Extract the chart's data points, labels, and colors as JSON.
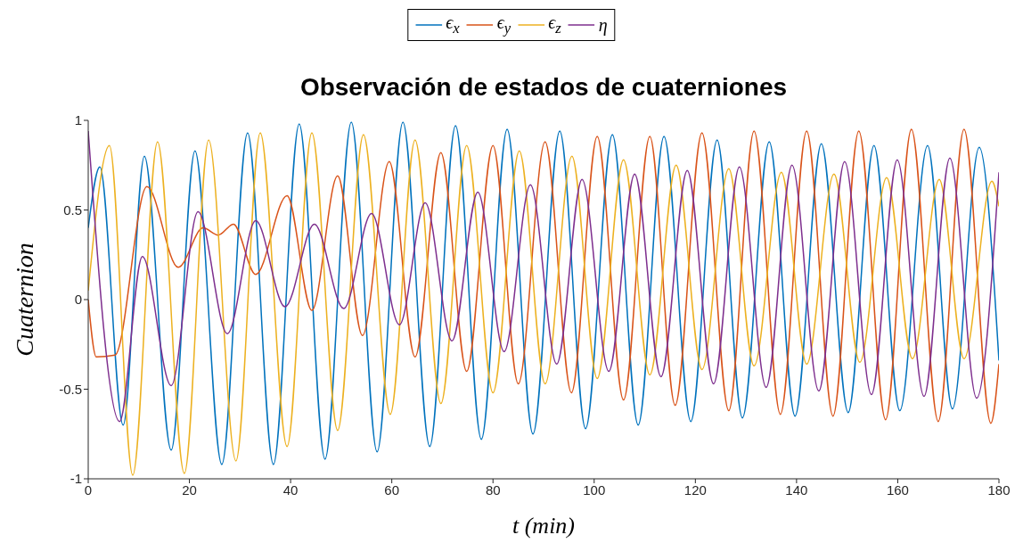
{
  "chart_data": {
    "type": "line",
    "title": "Observación de estados de cuaterniones",
    "xlabel": "t (min)",
    "ylabel": "Cuaternion",
    "legend": "top",
    "xlim": [
      0,
      180
    ],
    "ylim": [
      -1,
      1
    ],
    "xticks": [
      0,
      20,
      40,
      60,
      80,
      100,
      120,
      140,
      160,
      180
    ],
    "yticks": [
      -1,
      -0.5,
      0,
      0.5,
      1
    ],
    "series": [
      {
        "name": "ϵ$_{x}$",
        "color": "#0072bd",
        "x": [
          0,
          2.3,
          6.9,
          11.1,
          16.4,
          21.1,
          26.4,
          31.5,
          36.6,
          41.7,
          46.8,
          52,
          57.1,
          62.2,
          67.5,
          72.6,
          77.7,
          82.8,
          87.9,
          93.2,
          98.3,
          103.6,
          108.7,
          113.8,
          119.1,
          124.3,
          129.3,
          134.6,
          139.7,
          144.9,
          150.2,
          155.3,
          160.4,
          165.9,
          170.8,
          176.1,
          180
        ],
        "values": [
          0.4,
          0.74,
          -0.7,
          0.8,
          -0.84,
          0.83,
          -0.92,
          0.93,
          -0.92,
          0.98,
          -0.89,
          0.99,
          -0.85,
          0.99,
          -0.82,
          0.97,
          -0.78,
          0.95,
          -0.75,
          0.94,
          -0.72,
          0.92,
          -0.7,
          0.91,
          -0.68,
          0.89,
          -0.66,
          0.88,
          -0.65,
          0.87,
          -0.63,
          0.86,
          -0.62,
          0.86,
          -0.61,
          0.85,
          -0.34
        ]
      },
      {
        "name": "ϵ$_{y}$",
        "color": "#d95319",
        "x": [
          0,
          1.6,
          5.3,
          11.6,
          17.8,
          22.7,
          25.7,
          28.7,
          33.1,
          39.3,
          44.2,
          49.3,
          54.2,
          59.5,
          64.6,
          69.7,
          74.8,
          80,
          85,
          90.3,
          95.5,
          100.6,
          105.8,
          111,
          116,
          121.3,
          126.6,
          131.6,
          136.8,
          142,
          147.2,
          152.3,
          157.6,
          162.7,
          168,
          173.1,
          178.4,
          180
        ],
        "values": [
          0,
          -0.32,
          -0.31,
          0.63,
          0.18,
          0.4,
          0.36,
          0.42,
          0.14,
          0.58,
          -0.06,
          0.69,
          -0.2,
          0.77,
          -0.32,
          0.82,
          -0.4,
          0.86,
          -0.47,
          0.88,
          -0.52,
          0.91,
          -0.56,
          0.91,
          -0.59,
          0.93,
          -0.62,
          0.94,
          -0.64,
          0.94,
          -0.65,
          0.94,
          -0.67,
          0.95,
          -0.68,
          0.95,
          -0.69,
          -0.36
        ]
      },
      {
        "name": "ϵ$_{z}$",
        "color": "#edb120",
        "x": [
          0,
          4.2,
          8.8,
          13.7,
          19,
          23.8,
          29.2,
          34,
          39.3,
          44.2,
          49.3,
          54.4,
          59.7,
          64.6,
          69.7,
          74.8,
          80,
          85.2,
          90.3,
          95.6,
          100.6,
          105.8,
          111,
          116.2,
          121.3,
          126.6,
          131.6,
          137,
          142,
          147.4,
          152.5,
          157.8,
          162.9,
          168.2,
          173.1,
          178.6,
          180
        ],
        "values": [
          0.05,
          0.86,
          -0.98,
          0.88,
          -0.97,
          0.89,
          -0.9,
          0.93,
          -0.82,
          0.93,
          -0.73,
          0.92,
          -0.64,
          0.89,
          -0.58,
          0.86,
          -0.52,
          0.83,
          -0.47,
          0.8,
          -0.44,
          0.78,
          -0.42,
          0.75,
          -0.39,
          0.73,
          -0.37,
          0.71,
          -0.36,
          0.7,
          -0.35,
          0.68,
          -0.33,
          0.67,
          -0.33,
          0.66,
          0.52
        ]
      },
      {
        "name": "η",
        "color": "#7e2f8e",
        "x": [
          0,
          6.2,
          10.7,
          16.4,
          21.7,
          27.5,
          33.1,
          38.9,
          44.7,
          50.5,
          56,
          61.5,
          66.6,
          71.9,
          77,
          82.2,
          87.4,
          92.6,
          97.6,
          102.9,
          108,
          113.2,
          118.4,
          123.6,
          128.7,
          134,
          139.1,
          144.4,
          149.5,
          154.8,
          159.9,
          165.2,
          170.3,
          175.6,
          180
        ],
        "values": [
          0.94,
          -0.68,
          0.24,
          -0.48,
          0.49,
          -0.19,
          0.44,
          -0.04,
          0.42,
          -0.05,
          0.48,
          -0.14,
          0.54,
          -0.23,
          0.6,
          -0.29,
          0.64,
          -0.36,
          0.67,
          -0.4,
          0.7,
          -0.43,
          0.72,
          -0.47,
          0.74,
          -0.49,
          0.75,
          -0.51,
          0.77,
          -0.53,
          0.78,
          -0.54,
          0.79,
          -0.55,
          0.71
        ]
      }
    ]
  }
}
